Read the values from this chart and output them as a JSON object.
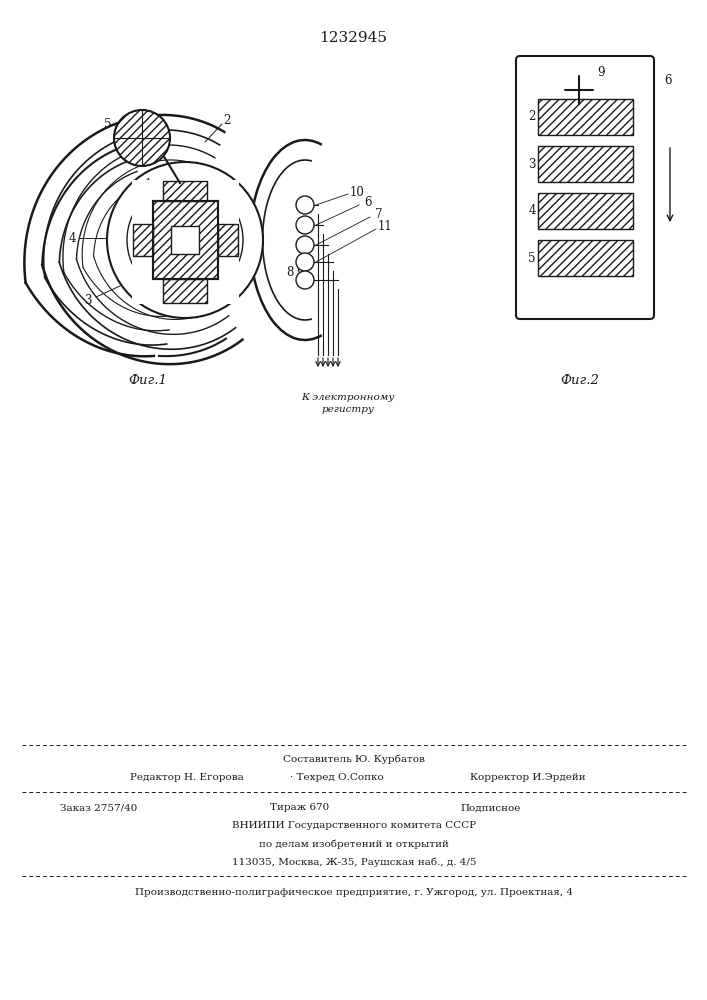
{
  "title": "1232945",
  "line_color": "#1a1a1a",
  "fig1_label": "Фиг.1",
  "fig2_label": "Фиг.2",
  "caption_line1": "К электронному",
  "caption_line2": "регистру",
  "footer_line1": "Составитель Ю. Курбатов",
  "footer_line2a": "Редактор Н. Егорова",
  "footer_line2b": "· Техред О.Сопко",
  "footer_line2c": "Корректор И.Эрдейи",
  "footer_line3a": "Заказ 2757/40",
  "footer_line3b": "Тираж 670",
  "footer_line3c": "Подписное",
  "footer_line4": "ВНИИПИ Государственного комитета СССР",
  "footer_line5": "по делам изобретений и открытий",
  "footer_line6": "113035, Москва, Ж-35, Раушская наб., д. 4/5",
  "footer_line7": "Производственно-полиграфическое предприятие, г. Ужгород, ул. Проектная, 4"
}
